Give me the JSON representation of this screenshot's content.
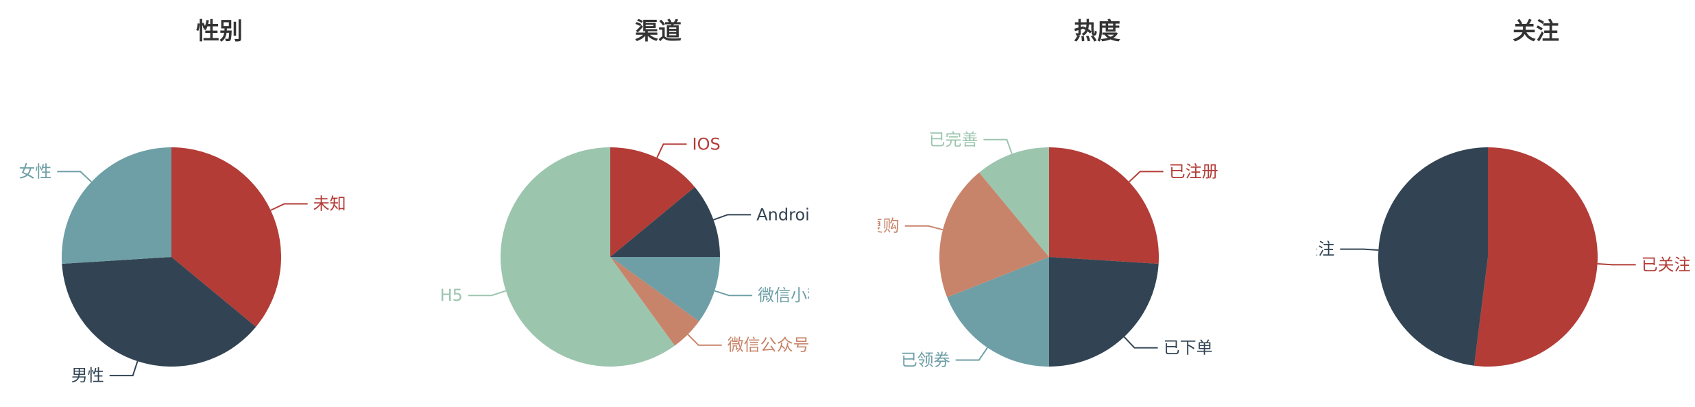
{
  "chart_data": [
    {
      "type": "pie",
      "title": "性别",
      "categories": [
        "未知",
        "男性",
        "女性"
      ],
      "values": [
        36,
        38,
        26
      ],
      "colors": [
        "#b33c37",
        "#324453",
        "#6e9fa6"
      ]
    },
    {
      "type": "pie",
      "title": "渠道",
      "categories": [
        "IOS",
        "Android",
        "微信小程序",
        "微信公众号",
        "H5"
      ],
      "values": [
        14,
        11,
        10,
        5,
        60
      ],
      "colors": [
        "#b33c37",
        "#324453",
        "#6e9fa6",
        "#c8846a",
        "#9cc5ae"
      ]
    },
    {
      "type": "pie",
      "title": "热度",
      "categories": [
        "已注册",
        "已下单",
        "已领券",
        "已复购",
        "已完善"
      ],
      "values": [
        26,
        24,
        19,
        20,
        11
      ],
      "colors": [
        "#b33c37",
        "#324453",
        "#6e9fa6",
        "#c8846a",
        "#9cc5ae"
      ]
    },
    {
      "type": "pie",
      "title": "关注",
      "categories": [
        "已关注",
        "未关注"
      ],
      "values": [
        52,
        48
      ],
      "colors": [
        "#b33c37",
        "#324453"
      ]
    }
  ]
}
